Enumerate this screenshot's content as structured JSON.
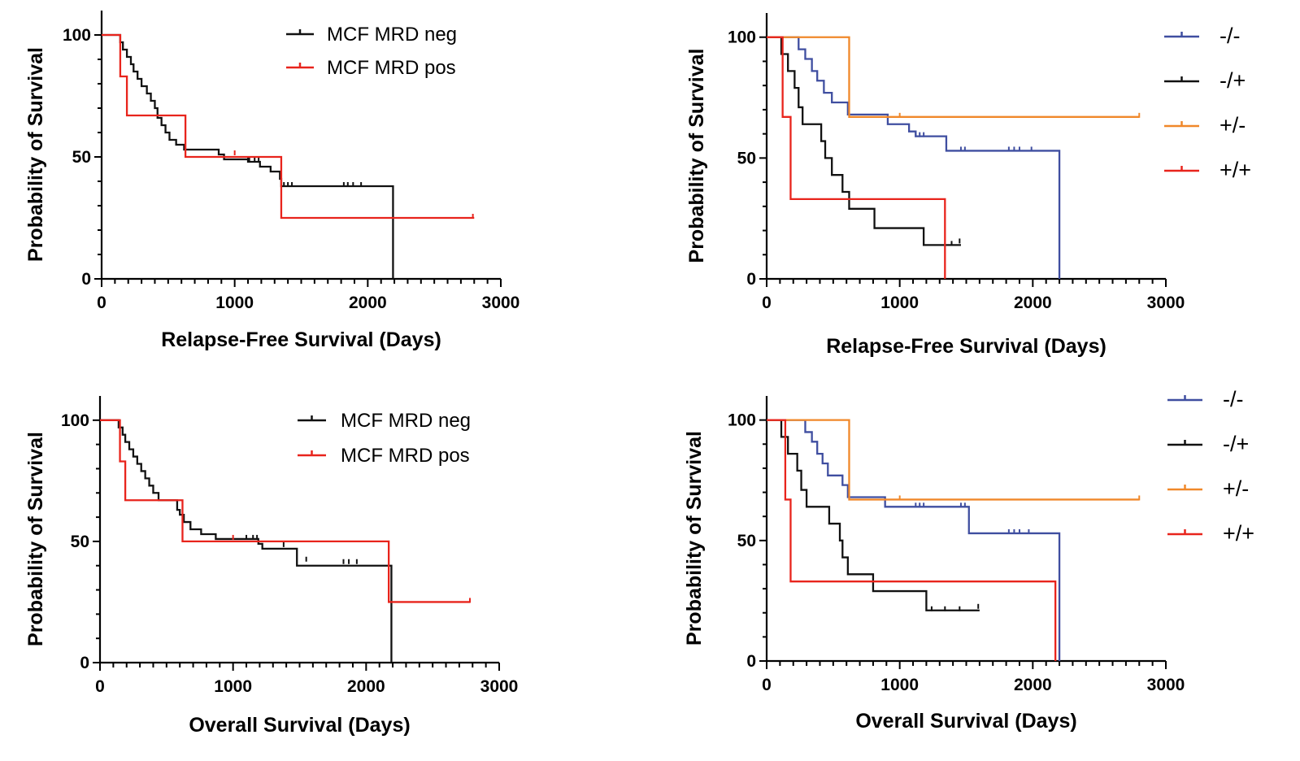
{
  "colors": {
    "black": "#111111",
    "red": "#e8241c",
    "blue": "#3f4ea0",
    "orange": "#f0882a"
  },
  "chart_data": [
    {
      "id": "A",
      "type": "line",
      "step": true,
      "xlabel": "Relapse-Free Survival (Days)",
      "ylabel": "Probability of Survival",
      "xlim": [
        0,
        3000
      ],
      "ylim": [
        0,
        110
      ],
      "xticks": [
        "0",
        "1000",
        "2000",
        "3000"
      ],
      "yticks": [
        "0",
        "50",
        "100"
      ],
      "legend_position": "top-center",
      "legend_style": "text",
      "series": [
        {
          "name": "MCF MRD neg",
          "color": "black",
          "points": [
            [
              0,
              100
            ],
            [
              120,
              100
            ],
            [
              140,
              97
            ],
            [
              160,
              94
            ],
            [
              190,
              91
            ],
            [
              220,
              88
            ],
            [
              240,
              85
            ],
            [
              270,
              82
            ],
            [
              300,
              79
            ],
            [
              340,
              76
            ],
            [
              370,
              73
            ],
            [
              400,
              70
            ],
            [
              420,
              66
            ],
            [
              450,
              63
            ],
            [
              480,
              60
            ],
            [
              510,
              57
            ],
            [
              560,
              55
            ],
            [
              620,
              53
            ],
            [
              880,
              51
            ],
            [
              920,
              49
            ],
            [
              1100,
              48
            ],
            [
              1190,
              46
            ],
            [
              1270,
              44
            ],
            [
              1340,
              41
            ],
            [
              1350,
              38
            ],
            [
              2180,
              38
            ],
            [
              2190,
              0
            ]
          ],
          "censor": [
            [
              1100,
              48
            ],
            [
              1110,
              48
            ],
            [
              1150,
              48
            ],
            [
              1180,
              48
            ],
            [
              1370,
              38
            ],
            [
              1400,
              38
            ],
            [
              1430,
              38
            ],
            [
              1820,
              38
            ],
            [
              1850,
              38
            ],
            [
              1890,
              38
            ],
            [
              1950,
              38
            ]
          ]
        },
        {
          "name": "MCF MRD pos",
          "color": "red",
          "points": [
            [
              0,
              100
            ],
            [
              130,
              100
            ],
            [
              140,
              83
            ],
            [
              180,
              83
            ],
            [
              190,
              67
            ],
            [
              620,
              67
            ],
            [
              630,
              50
            ],
            [
              1340,
              50
            ],
            [
              1350,
              25
            ],
            [
              2800,
              25
            ]
          ],
          "censor": [
            [
              1000,
              51
            ],
            [
              2790,
              25
            ]
          ]
        }
      ]
    },
    {
      "id": "B",
      "type": "line",
      "step": true,
      "xlabel": "Relapse-Free Survival (Days)",
      "ylabel": "Probability of Survival",
      "xlim": [
        0,
        3000
      ],
      "ylim": [
        0,
        110
      ],
      "xticks": [
        "0",
        "1000",
        "2000",
        "3000"
      ],
      "yticks": [
        "0",
        "50",
        "100"
      ],
      "legend_position": "right",
      "legend_style": "symbol",
      "series": [
        {
          "name": "-/-",
          "color": "blue",
          "points": [
            [
              0,
              100
            ],
            [
              230,
              100
            ],
            [
              240,
              95
            ],
            [
              280,
              95
            ],
            [
              290,
              91
            ],
            [
              330,
              91
            ],
            [
              340,
              86
            ],
            [
              370,
              86
            ],
            [
              380,
              82
            ],
            [
              420,
              82
            ],
            [
              430,
              77
            ],
            [
              480,
              77
            ],
            [
              490,
              73
            ],
            [
              600,
              73
            ],
            [
              610,
              68
            ],
            [
              900,
              68
            ],
            [
              910,
              64
            ],
            [
              1060,
              64
            ],
            [
              1070,
              61
            ],
            [
              1110,
              61
            ],
            [
              1120,
              59
            ],
            [
              1340,
              59
            ],
            [
              1350,
              53
            ],
            [
              2190,
              53
            ],
            [
              2200,
              0
            ]
          ],
          "censor": [
            [
              1120,
              59
            ],
            [
              1150,
              59
            ],
            [
              1180,
              59
            ],
            [
              1460,
              53
            ],
            [
              1490,
              53
            ],
            [
              1820,
              53
            ],
            [
              1860,
              53
            ],
            [
              1900,
              53
            ],
            [
              1990,
              53
            ]
          ]
        },
        {
          "name": "-/+",
          "color": "black",
          "points": [
            [
              0,
              100
            ],
            [
              100,
              100
            ],
            [
              110,
              93
            ],
            [
              150,
              93
            ],
            [
              160,
              86
            ],
            [
              200,
              86
            ],
            [
              210,
              79
            ],
            [
              230,
              79
            ],
            [
              240,
              71
            ],
            [
              260,
              71
            ],
            [
              270,
              64
            ],
            [
              400,
              64
            ],
            [
              410,
              57
            ],
            [
              430,
              57
            ],
            [
              440,
              50
            ],
            [
              480,
              50
            ],
            [
              490,
              43
            ],
            [
              560,
              43
            ],
            [
              570,
              36
            ],
            [
              610,
              36
            ],
            [
              620,
              29
            ],
            [
              800,
              29
            ],
            [
              810,
              21
            ],
            [
              1170,
              21
            ],
            [
              1180,
              14
            ],
            [
              1460,
              14
            ]
          ],
          "censor": [
            [
              1390,
              14
            ],
            [
              1450,
              15
            ]
          ]
        },
        {
          "name": "+/-",
          "color": "orange",
          "points": [
            [
              0,
              100
            ],
            [
              610,
              100
            ],
            [
              620,
              67
            ],
            [
              2800,
              67
            ]
          ],
          "censor": [
            [
              1000,
              67
            ],
            [
              2800,
              67
            ]
          ]
        },
        {
          "name": "+/+",
          "color": "red",
          "points": [
            [
              0,
              100
            ],
            [
              110,
              100
            ],
            [
              120,
              67
            ],
            [
              170,
              67
            ],
            [
              180,
              33
            ],
            [
              1330,
              33
            ],
            [
              1340,
              0
            ]
          ],
          "censor": []
        }
      ]
    },
    {
      "id": "C",
      "type": "line",
      "step": true,
      "xlabel": "Overall Survival (Days)",
      "ylabel": "Probability of Survival",
      "xlim": [
        0,
        3000
      ],
      "ylim": [
        0,
        110
      ],
      "xticks": [
        "0",
        "1000",
        "2000",
        "3000"
      ],
      "yticks": [
        "0",
        "50",
        "100"
      ],
      "legend_position": "top-center",
      "legend_style": "text",
      "series": [
        {
          "name": "MCF MRD neg",
          "color": "black",
          "points": [
            [
              0,
              100
            ],
            [
              120,
              100
            ],
            [
              140,
              97
            ],
            [
              170,
              94
            ],
            [
              190,
              91
            ],
            [
              220,
              88
            ],
            [
              250,
              85
            ],
            [
              280,
              82
            ],
            [
              310,
              79
            ],
            [
              340,
              76
            ],
            [
              370,
              73
            ],
            [
              400,
              70
            ],
            [
              440,
              67
            ],
            [
              560,
              67
            ],
            [
              580,
              63
            ],
            [
              600,
              61
            ],
            [
              630,
              58
            ],
            [
              680,
              55
            ],
            [
              760,
              53
            ],
            [
              870,
              51
            ],
            [
              1100,
              51
            ],
            [
              1190,
              49
            ],
            [
              1220,
              47
            ],
            [
              1470,
              47
            ],
            [
              1480,
              40
            ],
            [
              2180,
              40
            ],
            [
              2190,
              0
            ]
          ],
          "censor": [
            [
              1100,
              51
            ],
            [
              1150,
              51
            ],
            [
              1180,
              51
            ],
            [
              1380,
              48
            ],
            [
              1550,
              42
            ],
            [
              1830,
              41
            ],
            [
              1870,
              41
            ],
            [
              1930,
              41
            ]
          ]
        },
        {
          "name": "MCF MRD pos",
          "color": "red",
          "points": [
            [
              0,
              100
            ],
            [
              140,
              100
            ],
            [
              150,
              83
            ],
            [
              180,
              83
            ],
            [
              190,
              67
            ],
            [
              610,
              67
            ],
            [
              620,
              50
            ],
            [
              2160,
              50
            ],
            [
              2170,
              25
            ],
            [
              2780,
              25
            ]
          ],
          "censor": [
            [
              1000,
              51
            ],
            [
              2780,
              25
            ]
          ]
        }
      ]
    },
    {
      "id": "D",
      "type": "line",
      "step": true,
      "xlabel": "Overall Survival (Days)",
      "ylabel": "Probability of Survival",
      "xlim": [
        0,
        3000
      ],
      "ylim": [
        0,
        110
      ],
      "xticks": [
        "0",
        "1000",
        "2000",
        "3000"
      ],
      "yticks": [
        "0",
        "50",
        "100"
      ],
      "legend_position": "right",
      "legend_style": "symbol",
      "series": [
        {
          "name": "-/-",
          "color": "blue",
          "points": [
            [
              0,
              100
            ],
            [
              280,
              100
            ],
            [
              290,
              95
            ],
            [
              330,
              95
            ],
            [
              340,
              91
            ],
            [
              370,
              91
            ],
            [
              380,
              86
            ],
            [
              410,
              86
            ],
            [
              420,
              82
            ],
            [
              450,
              82
            ],
            [
              460,
              77
            ],
            [
              560,
              77
            ],
            [
              570,
              73
            ],
            [
              600,
              73
            ],
            [
              610,
              68
            ],
            [
              880,
              68
            ],
            [
              890,
              64
            ],
            [
              1510,
              64
            ],
            [
              1520,
              53
            ],
            [
              2190,
              53
            ],
            [
              2200,
              0
            ]
          ],
          "censor": [
            [
              1120,
              64
            ],
            [
              1150,
              64
            ],
            [
              1180,
              64
            ],
            [
              1460,
              64
            ],
            [
              1490,
              64
            ],
            [
              1820,
              53
            ],
            [
              1860,
              53
            ],
            [
              1900,
              53
            ],
            [
              1970,
              53
            ]
          ]
        },
        {
          "name": "-/+",
          "color": "black",
          "points": [
            [
              0,
              100
            ],
            [
              100,
              100
            ],
            [
              110,
              93
            ],
            [
              150,
              93
            ],
            [
              160,
              86
            ],
            [
              220,
              86
            ],
            [
              230,
              79
            ],
            [
              250,
              79
            ],
            [
              260,
              71
            ],
            [
              290,
              71
            ],
            [
              300,
              64
            ],
            [
              460,
              64
            ],
            [
              470,
              57
            ],
            [
              540,
              57
            ],
            [
              550,
              50
            ],
            [
              560,
              50
            ],
            [
              570,
              43
            ],
            [
              600,
              43
            ],
            [
              610,
              36
            ],
            [
              790,
              36
            ],
            [
              800,
              29
            ],
            [
              1190,
              29
            ],
            [
              1200,
              21
            ],
            [
              1600,
              21
            ]
          ],
          "censor": [
            [
              1240,
              21
            ],
            [
              1340,
              21
            ],
            [
              1450,
              21
            ],
            [
              1590,
              22
            ]
          ]
        },
        {
          "name": "+/-",
          "color": "orange",
          "points": [
            [
              0,
              100
            ],
            [
              610,
              100
            ],
            [
              620,
              67
            ],
            [
              2800,
              67
            ]
          ],
          "censor": [
            [
              1000,
              67
            ],
            [
              2800,
              67
            ]
          ]
        },
        {
          "name": "+/+",
          "color": "red",
          "points": [
            [
              0,
              100
            ],
            [
              130,
              100
            ],
            [
              140,
              67
            ],
            [
              170,
              67
            ],
            [
              180,
              33
            ],
            [
              2160,
              33
            ],
            [
              2170,
              0
            ]
          ],
          "censor": []
        }
      ]
    }
  ]
}
